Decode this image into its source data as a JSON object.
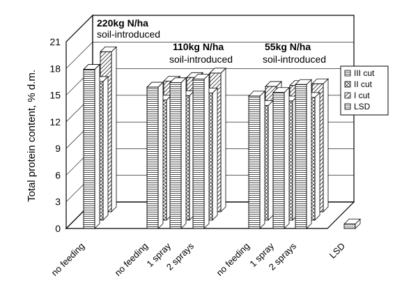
{
  "chart_data": {
    "type": "bar",
    "ylabel": "Total protein content, % d.m.",
    "ylim": [
      0,
      21
    ],
    "yticks": [
      0,
      3,
      6,
      9,
      12,
      15,
      18,
      21
    ],
    "categories": [
      "no feeding",
      "no feeding",
      "1 spray",
      "2 sprays",
      "no feeding",
      "1 spray",
      "2 sprays",
      "LSD"
    ],
    "groups": [
      {
        "line1": "220kg N/ha",
        "line2": "soil-introduced"
      },
      {
        "line1": "110kg N/ha",
        "line2": "soil-introduced"
      },
      {
        "line1": "55kg N/ha",
        "line2": "soil-introduced"
      }
    ],
    "series": [
      {
        "name": "III cut",
        "values": [
          17.9,
          15.9,
          16.4,
          16.8,
          14.9,
          15.3,
          16.2,
          null
        ]
      },
      {
        "name": "II cut",
        "values": [
          15.6,
          13.5,
          14.0,
          14.3,
          12.9,
          13.4,
          13.8,
          null
        ]
      },
      {
        "name": "I cut",
        "values": [
          18.0,
          14.7,
          15.1,
          15.6,
          14.1,
          14.2,
          14.4,
          null
        ]
      },
      {
        "name": "LSD",
        "values": [
          null,
          null,
          null,
          null,
          null,
          null,
          null,
          0.5
        ]
      }
    ],
    "legend_position": "right",
    "grid": true
  },
  "colors": {
    "frame": "#000000",
    "background": "#ffffff"
  }
}
